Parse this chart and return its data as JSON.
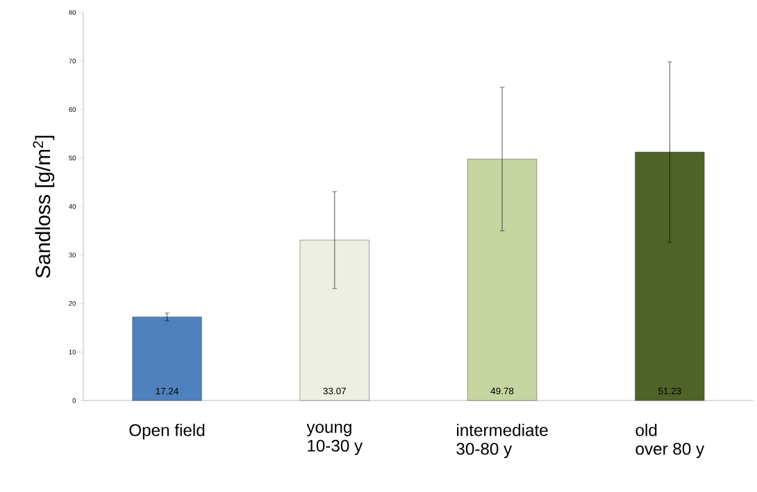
{
  "chart_data": {
    "type": "bar",
    "ylabel": "Sandloss [g/m$^{2}$]",
    "categories": [
      "Open field",
      "young\n10-30 y",
      "intermediate\n30-80 y",
      "old\nover 80 y"
    ],
    "values": [
      17.24,
      33.07,
      49.78,
      51.23
    ],
    "colors": [
      "#4f81bd",
      "#eeefe3",
      "#c6d5a0",
      "#4f6228"
    ],
    "errors": [
      0.8,
      10,
      14.8,
      18.6
    ],
    "data_labels": true,
    "grid": false,
    "ylim": [
      0,
      80
    ],
    "yticks": [
      0,
      10,
      20,
      30,
      40,
      50,
      60,
      70,
      80
    ]
  }
}
